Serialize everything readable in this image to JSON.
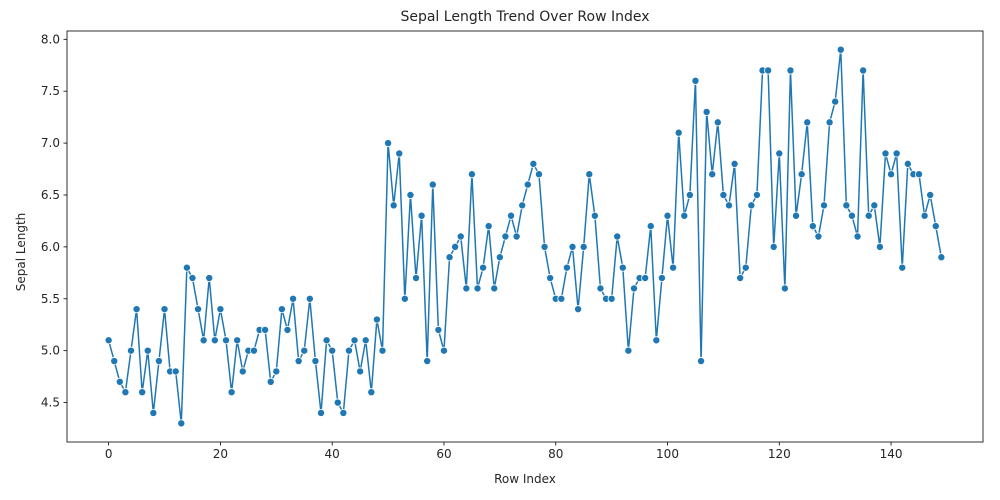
{
  "chart_data": {
    "type": "line",
    "title": "Sepal Length Trend Over Row Index",
    "xlabel": "Row Index",
    "ylabel": "Sepal Length",
    "xlim": [
      -7.45,
      156.45
    ],
    "ylim": [
      4.12,
      8.08
    ],
    "xticks": [
      0,
      20,
      40,
      60,
      80,
      100,
      120,
      140
    ],
    "yticks": [
      4.5,
      5.0,
      5.5,
      6.0,
      6.5,
      7.0,
      7.5,
      8.0
    ],
    "ytick_labels": [
      "4.5",
      "5.0",
      "5.5",
      "6.0",
      "6.5",
      "7.0",
      "7.5",
      "8.0"
    ],
    "grid": false,
    "color": "#1f77b4",
    "marker": "circle",
    "series": [
      {
        "values": [
          5.1,
          4.9,
          4.7,
          4.6,
          5.0,
          5.4,
          4.6,
          5.0,
          4.4,
          4.9,
          5.4,
          4.8,
          4.8,
          4.3,
          5.8,
          5.7,
          5.4,
          5.1,
          5.7,
          5.1,
          5.4,
          5.1,
          4.6,
          5.1,
          4.8,
          5.0,
          5.0,
          5.2,
          5.2,
          4.7,
          4.8,
          5.4,
          5.2,
          5.5,
          4.9,
          5.0,
          5.5,
          4.9,
          4.4,
          5.1,
          5.0,
          4.5,
          4.4,
          5.0,
          5.1,
          4.8,
          5.1,
          4.6,
          5.3,
          5.0,
          7.0,
          6.4,
          6.9,
          5.5,
          6.5,
          5.7,
          6.3,
          4.9,
          6.6,
          5.2,
          5.0,
          5.9,
          6.0,
          6.1,
          5.6,
          6.7,
          5.6,
          5.8,
          6.2,
          5.6,
          5.9,
          6.1,
          6.3,
          6.1,
          6.4,
          6.6,
          6.8,
          6.7,
          6.0,
          5.7,
          5.5,
          5.5,
          5.8,
          6.0,
          5.4,
          6.0,
          6.7,
          6.3,
          5.6,
          5.5,
          5.5,
          6.1,
          5.8,
          5.0,
          5.6,
          5.7,
          5.7,
          6.2,
          5.1,
          5.7,
          6.3,
          5.8,
          7.1,
          6.3,
          6.5,
          7.6,
          4.9,
          7.3,
          6.7,
          7.2,
          6.5,
          6.4,
          6.8,
          5.7,
          5.8,
          6.4,
          6.5,
          7.7,
          7.7,
          6.0,
          6.9,
          5.6,
          7.7,
          6.3,
          6.7,
          7.2,
          6.2,
          6.1,
          6.4,
          7.2,
          7.4,
          7.9,
          6.4,
          6.3,
          6.1,
          7.7,
          6.3,
          6.4,
          6.0,
          6.9,
          6.7,
          6.9,
          5.8,
          6.8,
          6.7,
          6.7,
          6.3,
          6.5,
          6.2,
          5.9
        ]
      }
    ]
  }
}
